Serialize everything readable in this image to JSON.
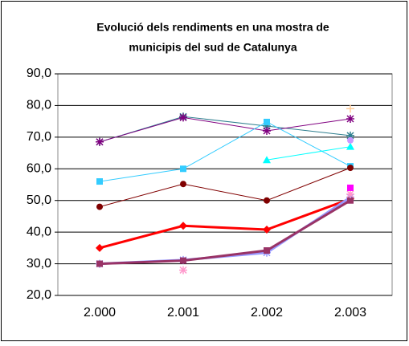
{
  "chart_data": {
    "type": "line",
    "title": [
      "Evolució dels rendiments en una mostra de",
      "municipis del sud de Catalunya"
    ],
    "categories": [
      "2.000",
      "2.001",
      "2.002",
      "2.003"
    ],
    "ylim": [
      20,
      90
    ],
    "yticks": [
      {
        "value": 20,
        "label": "20,0"
      },
      {
        "value": 30,
        "label": "30,0"
      },
      {
        "value": 40,
        "label": "40,0"
      },
      {
        "value": 50,
        "label": "50,0"
      },
      {
        "value": 60,
        "label": "60,0"
      },
      {
        "value": 70,
        "label": "70,0"
      },
      {
        "value": 80,
        "label": "80,0"
      },
      {
        "value": 90,
        "label": "90,0"
      }
    ],
    "grid": true,
    "series": [
      {
        "color": "#2f7f8f",
        "marker": "star",
        "width": 1,
        "values": [
          68.5,
          76.5,
          73.5,
          70.5
        ]
      },
      {
        "color": "#800080",
        "marker": "star",
        "width": 1,
        "values": [
          68.5,
          76.2,
          72,
          75.8
        ]
      },
      {
        "color": "#33ccff",
        "marker": "square",
        "width": 1,
        "values": [
          56,
          60,
          74.8,
          60.8
        ]
      },
      {
        "color": "#00ffff",
        "marker": "triangle",
        "width": 1,
        "values": [
          null,
          null,
          62.8,
          67
        ]
      },
      {
        "color": "#800000",
        "marker": "circle",
        "width": 1,
        "values": [
          48,
          55.2,
          50,
          60.3
        ]
      },
      {
        "color": "#ff0000",
        "marker": "diamond",
        "width": 3,
        "values": [
          35,
          42,
          40.8,
          50.5
        ]
      },
      {
        "color": "#9999ff",
        "marker": "star",
        "width": 3,
        "values": [
          30,
          31.2,
          33.5,
          51
        ]
      },
      {
        "color": "#993366",
        "marker": "square",
        "width": 3,
        "values": [
          30,
          31,
          34.2,
          50
        ]
      },
      {
        "color": "#ff99cc",
        "marker": "star",
        "width": 1,
        "values": [
          null,
          28,
          null,
          52
        ]
      },
      {
        "color": "#ff00ff",
        "marker": "square",
        "width": 1,
        "values": [
          null,
          null,
          null,
          54
        ]
      },
      {
        "color": "#cc99ff",
        "marker": "circle",
        "width": 1,
        "values": [
          null,
          null,
          null,
          69
        ]
      },
      {
        "color": "#ffcc99",
        "marker": "plus",
        "width": 1,
        "values": [
          null,
          null,
          null,
          79
        ]
      }
    ]
  }
}
